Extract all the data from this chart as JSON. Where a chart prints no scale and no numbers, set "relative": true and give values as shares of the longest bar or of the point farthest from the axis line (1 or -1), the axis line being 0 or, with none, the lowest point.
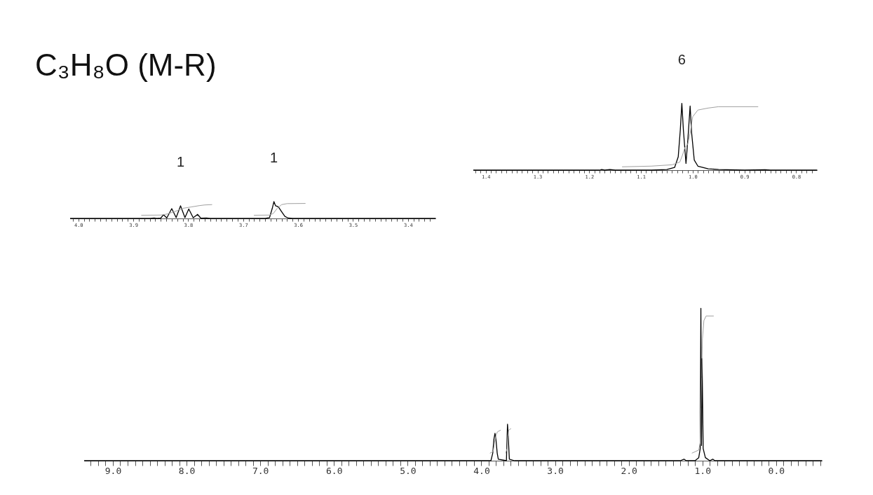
{
  "chart_data": [
    {
      "type": "line",
      "title": "C₃H₈O (M-R)",
      "relative": true,
      "grid": false,
      "xlim": [
        4.015,
        3.35
      ],
      "xticks": [
        {
          "value": 4.0,
          "label": "4.0"
        },
        {
          "value": 3.9,
          "label": "3.9"
        },
        {
          "value": 3.8,
          "label": "3.8"
        },
        {
          "value": 3.7,
          "label": "3.7"
        },
        {
          "value": 3.6,
          "label": "3.6"
        },
        {
          "value": 3.5,
          "label": "3.5"
        },
        {
          "value": 3.4,
          "label": "3.4"
        },
        {
          "value": 4.01,
          "label": null
        },
        {
          "value": 3.99,
          "label": null
        },
        {
          "value": 3.98,
          "label": null
        },
        {
          "value": 3.97,
          "label": null
        },
        {
          "value": 3.96,
          "label": null
        },
        {
          "value": 3.95,
          "label": null
        },
        {
          "value": 3.94,
          "label": null
        },
        {
          "value": 3.93,
          "label": null
        },
        {
          "value": 3.92,
          "label": null
        },
        {
          "value": 3.91,
          "label": null
        },
        {
          "value": 3.89,
          "label": null
        },
        {
          "value": 3.88,
          "label": null
        },
        {
          "value": 3.87,
          "label": null
        },
        {
          "value": 3.86,
          "label": null
        },
        {
          "value": 3.85,
          "label": null
        },
        {
          "value": 3.84,
          "label": null
        },
        {
          "value": 3.83,
          "label": null
        },
        {
          "value": 3.82,
          "label": null
        },
        {
          "value": 3.81,
          "label": null
        },
        {
          "value": 3.79,
          "label": null
        },
        {
          "value": 3.78,
          "label": null
        },
        {
          "value": 3.77,
          "label": null
        },
        {
          "value": 3.76,
          "label": null
        },
        {
          "value": 3.75,
          "label": null
        },
        {
          "value": 3.74,
          "label": null
        },
        {
          "value": 3.73,
          "label": null
        },
        {
          "value": 3.72,
          "label": null
        },
        {
          "value": 3.71,
          "label": null
        },
        {
          "value": 3.69,
          "label": null
        },
        {
          "value": 3.68,
          "label": null
        },
        {
          "value": 3.67,
          "label": null
        },
        {
          "value": 3.66,
          "label": null
        },
        {
          "value": 3.65,
          "label": null
        },
        {
          "value": 3.64,
          "label": null
        },
        {
          "value": 3.63,
          "label": null
        },
        {
          "value": 3.62,
          "label": null
        },
        {
          "value": 3.61,
          "label": null
        },
        {
          "value": 3.59,
          "label": null
        },
        {
          "value": 3.58,
          "label": null
        },
        {
          "value": 3.57,
          "label": null
        },
        {
          "value": 3.56,
          "label": null
        },
        {
          "value": 3.55,
          "label": null
        },
        {
          "value": 3.54,
          "label": null
        },
        {
          "value": 3.53,
          "label": null
        },
        {
          "value": 3.52,
          "label": null
        },
        {
          "value": 3.51,
          "label": null
        },
        {
          "value": 3.49,
          "label": null
        },
        {
          "value": 3.48,
          "label": null
        },
        {
          "value": 3.47,
          "label": null
        },
        {
          "value": 3.46,
          "label": null
        },
        {
          "value": 3.45,
          "label": null
        },
        {
          "value": 3.44,
          "label": null
        },
        {
          "value": 3.43,
          "label": null
        },
        {
          "value": 3.42,
          "label": null
        },
        {
          "value": 3.41,
          "label": null
        },
        {
          "value": 3.39,
          "label": null
        },
        {
          "value": 3.38,
          "label": null
        },
        {
          "value": 3.37,
          "label": null
        },
        {
          "value": 3.36,
          "label": null
        }
      ],
      "annotations": [
        {
          "text": "1",
          "x": 3.814,
          "y": 0.75
        },
        {
          "text": "1",
          "x": 3.644,
          "y": 1.0
        }
      ],
      "series": [
        {
          "color": "#000000",
          "x": [
            4.015,
            3.87,
            3.862,
            3.857,
            3.85,
            3.845,
            3.839,
            3.83,
            3.822,
            3.814,
            3.806,
            3.799,
            3.791,
            3.783,
            3.777,
            3.767,
            3.76,
            3.66,
            3.652,
            3.647,
            3.644,
            3.641,
            3.636,
            3.63,
            3.624,
            3.618,
            3.61,
            3.35
          ],
          "values": [
            0,
            0,
            0.02,
            0,
            0.02,
            0.22,
            0.03,
            0.58,
            0.05,
            0.75,
            0.05,
            0.56,
            0.04,
            0.24,
            0.01,
            0.02,
            0,
            0,
            0.05,
            0.6,
            1.0,
            0.75,
            0.69,
            0.4,
            0.12,
            0.02,
            0,
            0
          ]
        },
        {
          "color": "#a0a0a0",
          "x": [
            3.885,
            3.85,
            3.84,
            3.825,
            3.81,
            3.795,
            3.78,
            3.77,
            3.757
          ],
          "values": [
            0.19,
            0.2,
            0.25,
            0.4,
            0.6,
            0.68,
            0.76,
            0.8,
            0.82
          ]
        },
        {
          "color": "#a0a0a0",
          "x": [
            3.68,
            3.652,
            3.645,
            3.638,
            3.63,
            3.62,
            3.587
          ],
          "values": [
            0.19,
            0.2,
            0.3,
            0.6,
            0.82,
            0.88,
            0.89
          ]
        }
      ]
    },
    {
      "type": "line",
      "relative": true,
      "grid": false,
      "xlim": [
        1.424,
        0.76
      ],
      "xticks": [
        {
          "value": 1.4,
          "label": "1.4"
        },
        {
          "value": 1.3,
          "label": "1.3"
        },
        {
          "value": 1.2,
          "label": "1.2"
        },
        {
          "value": 1.1,
          "label": "1.1"
        },
        {
          "value": 1.0,
          "label": "1.0"
        },
        {
          "value": 0.9,
          "label": "0.9"
        },
        {
          "value": 0.8,
          "label": "0.8"
        },
        {
          "value": 1.42,
          "label": null
        },
        {
          "value": 1.41,
          "label": null
        },
        {
          "value": 1.39,
          "label": null
        },
        {
          "value": 1.38,
          "label": null
        },
        {
          "value": 1.37,
          "label": null
        },
        {
          "value": 1.36,
          "label": null
        },
        {
          "value": 1.35,
          "label": null
        },
        {
          "value": 1.34,
          "label": null
        },
        {
          "value": 1.33,
          "label": null
        },
        {
          "value": 1.32,
          "label": null
        },
        {
          "value": 1.31,
          "label": null
        },
        {
          "value": 1.29,
          "label": null
        },
        {
          "value": 1.28,
          "label": null
        },
        {
          "value": 1.27,
          "label": null
        },
        {
          "value": 1.26,
          "label": null
        },
        {
          "value": 1.25,
          "label": null
        },
        {
          "value": 1.24,
          "label": null
        },
        {
          "value": 1.23,
          "label": null
        },
        {
          "value": 1.22,
          "label": null
        },
        {
          "value": 1.21,
          "label": null
        },
        {
          "value": 1.19,
          "label": null
        },
        {
          "value": 1.18,
          "label": null
        },
        {
          "value": 1.17,
          "label": null
        },
        {
          "value": 1.16,
          "label": null
        },
        {
          "value": 1.15,
          "label": null
        },
        {
          "value": 1.14,
          "label": null
        },
        {
          "value": 1.13,
          "label": null
        },
        {
          "value": 1.12,
          "label": null
        },
        {
          "value": 1.11,
          "label": null
        },
        {
          "value": 1.09,
          "label": null
        },
        {
          "value": 1.08,
          "label": null
        },
        {
          "value": 1.07,
          "label": null
        },
        {
          "value": 1.06,
          "label": null
        },
        {
          "value": 1.05,
          "label": null
        },
        {
          "value": 1.04,
          "label": null
        },
        {
          "value": 1.03,
          "label": null
        },
        {
          "value": 1.02,
          "label": null
        },
        {
          "value": 1.01,
          "label": null
        },
        {
          "value": 0.99,
          "label": null
        },
        {
          "value": 0.98,
          "label": null
        },
        {
          "value": 0.97,
          "label": null
        },
        {
          "value": 0.96,
          "label": null
        },
        {
          "value": 0.95,
          "label": null
        },
        {
          "value": 0.94,
          "label": null
        },
        {
          "value": 0.93,
          "label": null
        },
        {
          "value": 0.92,
          "label": null
        },
        {
          "value": 0.91,
          "label": null
        },
        {
          "value": 0.89,
          "label": null
        },
        {
          "value": 0.88,
          "label": null
        },
        {
          "value": 0.87,
          "label": null
        },
        {
          "value": 0.86,
          "label": null
        },
        {
          "value": 0.85,
          "label": null
        },
        {
          "value": 0.84,
          "label": null
        },
        {
          "value": 0.83,
          "label": null
        },
        {
          "value": 0.82,
          "label": null
        },
        {
          "value": 0.81,
          "label": null
        },
        {
          "value": 0.79,
          "label": null
        },
        {
          "value": 0.78,
          "label": null
        },
        {
          "value": 0.77,
          "label": null
        }
      ],
      "annotations": [
        {
          "text": "6",
          "x": 1.021,
          "y": 1.0
        }
      ],
      "series": [
        {
          "color": "#000000",
          "x": [
            1.424,
            1.18,
            1.176,
            1.17,
            1.16,
            1.15,
            1.08,
            1.05,
            1.035,
            1.028,
            1.024,
            1.021,
            1.018,
            1.013,
            1.009,
            1.005,
            1.002,
            0.997,
            0.99,
            0.97,
            0.95,
            0.9,
            0.86,
            0.85,
            0.76
          ],
          "values": [
            0,
            0,
            0.01,
            0,
            0.01,
            0,
            0,
            0.01,
            0.04,
            0.2,
            0.6,
            1.0,
            0.6,
            0.1,
            0.5,
            0.96,
            0.55,
            0.15,
            0.06,
            0.02,
            0.01,
            0,
            0.005,
            0,
            0
          ]
        },
        {
          "color": "#a0a0a0",
          "x": [
            1.136,
            1.08,
            1.04,
            1.025,
            1.02,
            1.015,
            1.01,
            1.005,
            1.0,
            0.99,
            0.97,
            0.95,
            0.874
          ],
          "values": [
            0.05,
            0.06,
            0.08,
            0.12,
            0.22,
            0.34,
            0.38,
            0.55,
            0.8,
            0.9,
            0.93,
            0.95,
            0.95
          ]
        }
      ]
    },
    {
      "type": "line",
      "relative": true,
      "grid": false,
      "xlim": [
        9.39,
        -0.62
      ],
      "xticks": [
        {
          "value": 9,
          "label": "9.0"
        },
        {
          "value": 8,
          "label": "8.0"
        },
        {
          "value": 7,
          "label": "7.0"
        },
        {
          "value": 6,
          "label": "6.0"
        },
        {
          "value": 5,
          "label": "5.0"
        },
        {
          "value": 4,
          "label": "4.0"
        },
        {
          "value": 3,
          "label": "3.0"
        },
        {
          "value": 2,
          "label": "2.0"
        },
        {
          "value": 1,
          "label": "1.0"
        },
        {
          "value": 0,
          "label": "0.0"
        },
        {
          "value": 9.3,
          "label": null
        },
        {
          "value": 9.2,
          "label": null
        },
        {
          "value": 9.1,
          "label": null
        },
        {
          "value": 8.9,
          "label": null
        },
        {
          "value": 8.8,
          "label": null
        },
        {
          "value": 8.7,
          "label": null
        },
        {
          "value": 8.6,
          "label": null
        },
        {
          "value": 8.5,
          "label": null
        },
        {
          "value": 8.4,
          "label": null
        },
        {
          "value": 8.3,
          "label": null
        },
        {
          "value": 8.2,
          "label": null
        },
        {
          "value": 8.1,
          "label": null
        },
        {
          "value": 7.9,
          "label": null
        },
        {
          "value": 7.8,
          "label": null
        },
        {
          "value": 7.7,
          "label": null
        },
        {
          "value": 7.6,
          "label": null
        },
        {
          "value": 7.5,
          "label": null
        },
        {
          "value": 7.4,
          "label": null
        },
        {
          "value": 7.3,
          "label": null
        },
        {
          "value": 7.2,
          "label": null
        },
        {
          "value": 7.1,
          "label": null
        },
        {
          "value": 6.9,
          "label": null
        },
        {
          "value": 6.8,
          "label": null
        },
        {
          "value": 6.7,
          "label": null
        },
        {
          "value": 6.6,
          "label": null
        },
        {
          "value": 6.5,
          "label": null
        },
        {
          "value": 6.4,
          "label": null
        },
        {
          "value": 6.3,
          "label": null
        },
        {
          "value": 6.2,
          "label": null
        },
        {
          "value": 6.1,
          "label": null
        },
        {
          "value": 5.9,
          "label": null
        },
        {
          "value": 5.8,
          "label": null
        },
        {
          "value": 5.7,
          "label": null
        },
        {
          "value": 5.6,
          "label": null
        },
        {
          "value": 5.5,
          "label": null
        },
        {
          "value": 5.4,
          "label": null
        },
        {
          "value": 5.3,
          "label": null
        },
        {
          "value": 5.2,
          "label": null
        },
        {
          "value": 5.1,
          "label": null
        },
        {
          "value": 4.9,
          "label": null
        },
        {
          "value": 4.8,
          "label": null
        },
        {
          "value": 4.7,
          "label": null
        },
        {
          "value": 4.6,
          "label": null
        },
        {
          "value": 4.5,
          "label": null
        },
        {
          "value": 4.4,
          "label": null
        },
        {
          "value": 4.3,
          "label": null
        },
        {
          "value": 4.2,
          "label": null
        },
        {
          "value": 4.1,
          "label": null
        },
        {
          "value": 3.9,
          "label": null
        },
        {
          "value": 3.8,
          "label": null
        },
        {
          "value": 3.7,
          "label": null
        },
        {
          "value": 3.6,
          "label": null
        },
        {
          "value": 3.5,
          "label": null
        },
        {
          "value": 3.4,
          "label": null
        },
        {
          "value": 3.3,
          "label": null
        },
        {
          "value": 3.2,
          "label": null
        },
        {
          "value": 3.1,
          "label": null
        },
        {
          "value": 2.9,
          "label": null
        },
        {
          "value": 2.8,
          "label": null
        },
        {
          "value": 2.7,
          "label": null
        },
        {
          "value": 2.6,
          "label": null
        },
        {
          "value": 2.5,
          "label": null
        },
        {
          "value": 2.4,
          "label": null
        },
        {
          "value": 2.3,
          "label": null
        },
        {
          "value": 2.2,
          "label": null
        },
        {
          "value": 2.1,
          "label": null
        },
        {
          "value": 1.9,
          "label": null
        },
        {
          "value": 1.8,
          "label": null
        },
        {
          "value": 1.7,
          "label": null
        },
        {
          "value": 1.6,
          "label": null
        },
        {
          "value": 1.5,
          "label": null
        },
        {
          "value": 1.4,
          "label": null
        },
        {
          "value": 1.3,
          "label": null
        },
        {
          "value": 1.2,
          "label": null
        },
        {
          "value": 1.1,
          "label": null
        },
        {
          "value": 0.9,
          "label": null
        },
        {
          "value": 0.8,
          "label": null
        },
        {
          "value": 0.7,
          "label": null
        },
        {
          "value": 0.6,
          "label": null
        },
        {
          "value": 0.5,
          "label": null
        },
        {
          "value": 0.4,
          "label": null
        },
        {
          "value": 0.3,
          "label": null
        },
        {
          "value": 0.2,
          "label": null
        },
        {
          "value": 0.1,
          "label": null
        },
        {
          "value": -0.1,
          "label": null
        },
        {
          "value": -0.2,
          "label": null
        },
        {
          "value": -0.3,
          "label": null
        },
        {
          "value": -0.4,
          "label": null
        },
        {
          "value": -0.5,
          "label": null
        },
        {
          "value": -0.6,
          "label": null
        }
      ],
      "series": [
        {
          "color": "#000000",
          "x": [
            9.39,
            4.0,
            3.87,
            3.86,
            3.845,
            3.83,
            3.815,
            3.8,
            3.785,
            3.77,
            3.66,
            3.645,
            3.635,
            3.62,
            3.55,
            1.3,
            1.25,
            1.22,
            1.1,
            1.05,
            1.03,
            1.021,
            1.013,
            1.005,
            0.99,
            0.96,
            0.9,
            0.86,
            0.83,
            -0.62
          ],
          "values": [
            0,
            0,
            0,
            0.02,
            0.05,
            0.14,
            0.18,
            0.13,
            0.05,
            0.01,
            0,
            0.24,
            0.16,
            0.01,
            0,
            0,
            0.01,
            0,
            0,
            0.02,
            0.08,
            1.0,
            0.1,
            0.67,
            0.08,
            0.02,
            0,
            0.01,
            0,
            0
          ]
        },
        {
          "color": "#a0a0a0",
          "x": [
            3.88,
            3.84,
            3.82,
            3.8,
            3.78,
            3.74
          ],
          "values": [
            0.05,
            0.06,
            0.12,
            0.17,
            0.19,
            0.2
          ]
        },
        {
          "color": "#a0a0a0",
          "x": [
            3.67,
            3.65,
            3.64,
            3.63,
            3.6
          ],
          "values": [
            0.05,
            0.08,
            0.16,
            0.2,
            0.21
          ]
        },
        {
          "color": "#a0a0a0",
          "x": [
            1.14,
            1.05,
            1.03,
            1.02,
            1.01,
            1.0,
            0.98,
            0.95,
            0.85
          ],
          "values": [
            0.05,
            0.07,
            0.12,
            0.35,
            0.55,
            0.8,
            0.92,
            0.95,
            0.95
          ]
        }
      ]
    }
  ]
}
